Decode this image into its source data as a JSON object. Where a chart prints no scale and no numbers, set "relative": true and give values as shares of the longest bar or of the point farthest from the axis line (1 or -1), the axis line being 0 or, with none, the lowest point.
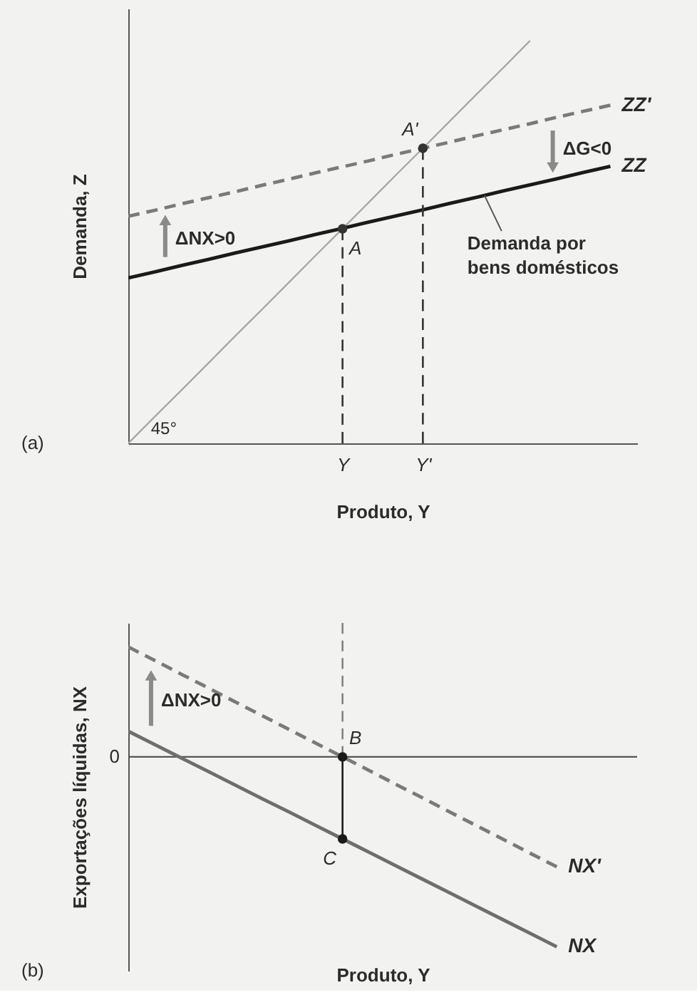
{
  "chart_data": [
    {
      "type": "line",
      "relative": true,
      "xlabel": "Produto, Y",
      "ylabel": "Demanda, Z",
      "categories": [
        null,
        null,
        null,
        null,
        null,
        null,
        null,
        null,
        "Y",
        null,
        null,
        "Y'",
        null,
        null,
        null,
        null,
        null,
        null,
        null,
        null
      ],
      "series": [
        {
          "type": "line",
          "color": "#a8a8a8",
          "values": [
            0,
            0.067,
            0.133,
            0.2,
            0.267,
            0.333,
            0.4,
            0.467,
            0.533,
            0.6,
            0.667,
            0.733,
            0.8,
            0.867,
            0.933,
            1,
            null,
            null,
            null,
            null
          ]
        },
        {
          "name": "ZZ'",
          "type": "line",
          "color": "#7a7a7a",
          "line_style": "dashed",
          "values": [
            0.564,
            0.579,
            0.595,
            0.61,
            0.625,
            0.641,
            0.656,
            0.672,
            0.687,
            0.702,
            0.718,
            0.733,
            0.748,
            0.764,
            0.779,
            0.794,
            0.81,
            0.825,
            0.84,
            null
          ]
        },
        {
          "name": "ZZ",
          "type": "line",
          "color": "#1a1a1a",
          "values": [
            0.411,
            0.426,
            0.442,
            0.457,
            0.473,
            0.488,
            0.503,
            0.519,
            0.534,
            0.55,
            0.565,
            0.58,
            0.596,
            0.611,
            0.627,
            0.642,
            0.657,
            0.673,
            0.688,
            null
          ]
        },
        {
          "type": "lollipop",
          "color": "#333333",
          "line_style": "dashed",
          "marker": "circle",
          "values": [
            null,
            null,
            null,
            null,
            null,
            null,
            null,
            null,
            0.533,
            null,
            null,
            0.733,
            null,
            null,
            null,
            null,
            null,
            null,
            null,
            null
          ]
        }
      ],
      "annotations": [
        {
          "text": "A",
          "x": "Y",
          "y": 0.533
        },
        {
          "text": "A'",
          "x": "Y'",
          "y": 0.733
        },
        "ΔNX>0",
        "ΔG<0",
        "Demanda por bens domésticos",
        "45°",
        "(a)"
      ]
    },
    {
      "type": "line",
      "relative": true,
      "xlabel": "Produto, Y",
      "ylabel": "Exportações líquidas, NX",
      "tick_labels": false,
      "categories": [
        null,
        null,
        null,
        null,
        null,
        null,
        null,
        null,
        "Y",
        null,
        null,
        "Y'",
        null,
        null,
        null,
        null,
        null,
        null,
        null,
        null
      ],
      "series": [
        {
          "name": "NX'",
          "type": "line",
          "color": "#7a7a7a",
          "line_style": "dashed",
          "values": [
            0.579,
            0.507,
            0.434,
            0.362,
            0.289,
            0.217,
            0.145,
            0.072,
            0,
            -0.072,
            -0.145,
            -0.217,
            -0.29,
            -0.362,
            -0.434,
            -0.507,
            -0.579,
            null,
            null,
            null
          ]
        },
        {
          "name": "NX",
          "type": "line",
          "color": "#6e6e6e",
          "values": [
            0.135,
            0.064,
            -0.007,
            -0.078,
            -0.149,
            -0.22,
            -0.29,
            -0.361,
            -0.432,
            -0.503,
            -0.574,
            -0.645,
            -0.716,
            -0.787,
            -0.858,
            -0.929,
            -1,
            null,
            null,
            null
          ]
        },
        {
          "type": "scatter",
          "color": "#1a1a1a",
          "marker": "circle",
          "values": [
            null,
            null,
            null,
            null,
            null,
            null,
            null,
            null,
            0,
            null,
            null,
            null,
            null,
            null,
            null,
            null,
            null,
            null,
            null,
            null
          ]
        },
        {
          "type": "lollipop",
          "color": "#1a1a1a",
          "marker": "circle",
          "values": [
            null,
            null,
            null,
            null,
            null,
            null,
            null,
            null,
            -0.432,
            null,
            null,
            null,
            null,
            null,
            null,
            null,
            null,
            null,
            null,
            null
          ]
        }
      ],
      "ref_lines": [
        {
          "axis": "y",
          "value": 0,
          "label": "0",
          "color": "#555555"
        },
        {
          "axis": "x",
          "value": "Y",
          "color": "#7a7a7a",
          "line_style": "dashed"
        }
      ],
      "annotations": [
        {
          "text": "B",
          "x": "Y",
          "y": 0
        },
        {
          "text": "C",
          "x": "Y",
          "y": -0.432
        },
        "ΔNX>0",
        "(b)"
      ]
    }
  ]
}
